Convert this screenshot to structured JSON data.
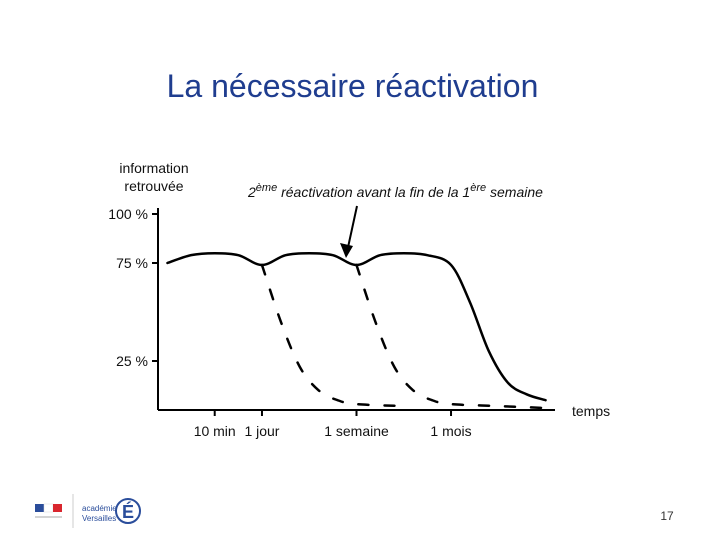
{
  "slide": {
    "title": "La nécessaire réactivation",
    "page_number": "17",
    "logo_text": [
      "académie",
      "Versailles"
    ]
  },
  "colors": {
    "title": "#1f3d8f",
    "curve": "#000000",
    "logo_blue": "#2a4d9b",
    "logo_red": "#d9262e"
  },
  "chart_data": {
    "type": "line",
    "title": "",
    "ylabel_lines": [
      "information",
      "retrouvée"
    ],
    "xlabel": "temps",
    "y_tick_labels": [
      "100 %",
      "75 %",
      "25 %"
    ],
    "y_tick_values": [
      100,
      75,
      25
    ],
    "x_tick_labels": [
      "10 min",
      "1 jour",
      "1 semaine",
      "1 mois"
    ],
    "annotation": {
      "prefix": "2",
      "sup1": "ème",
      "middle": " réactivation avant la fin de la 1",
      "sup2": "ère",
      "suffix": " semaine"
    },
    "series": [
      {
        "style": "solid",
        "points": [
          [
            0,
            75
          ],
          [
            0.5,
            79
          ],
          [
            1,
            80
          ],
          [
            1.5,
            79
          ],
          [
            2,
            74
          ],
          [
            2.5,
            79
          ],
          [
            3,
            80
          ],
          [
            3.5,
            79
          ],
          [
            4,
            74
          ],
          [
            4.5,
            79
          ],
          [
            5,
            80
          ],
          [
            5.5,
            79
          ],
          [
            6,
            74
          ],
          [
            6.4,
            55
          ],
          [
            6.8,
            30
          ],
          [
            7.2,
            14
          ],
          [
            7.6,
            8
          ],
          [
            8,
            5
          ]
        ]
      },
      {
        "style": "dashed",
        "points": [
          [
            2,
            74
          ],
          [
            2.4,
            45
          ],
          [
            2.8,
            22
          ],
          [
            3.2,
            10
          ],
          [
            3.6,
            5
          ],
          [
            4,
            3
          ],
          [
            5,
            2
          ]
        ]
      },
      {
        "style": "dashed",
        "points": [
          [
            4,
            74
          ],
          [
            4.4,
            45
          ],
          [
            4.8,
            22
          ],
          [
            5.2,
            10
          ],
          [
            5.6,
            5
          ],
          [
            6,
            3
          ],
          [
            7,
            2
          ],
          [
            8,
            1
          ]
        ]
      }
    ],
    "x_tick_positions": [
      1,
      2,
      4,
      6
    ],
    "xlim": [
      -0.2,
      8.2
    ],
    "ylim": [
      0,
      100
    ],
    "grid": false
  }
}
